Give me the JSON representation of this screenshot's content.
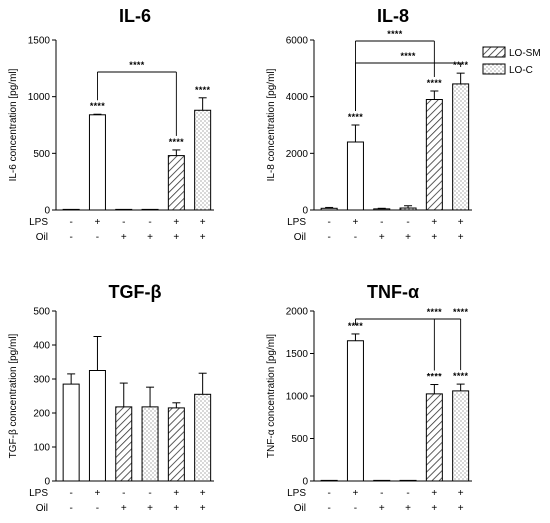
{
  "legend": {
    "entries": [
      {
        "label": "LO-SM",
        "pattern": "hatch"
      },
      {
        "label": "LO-C",
        "pattern": "dots"
      }
    ]
  },
  "conditions": {
    "row_labels": [
      "LPS",
      "Oil"
    ],
    "lps": [
      "-",
      "+",
      "-",
      "-",
      "+",
      "+"
    ],
    "oil": [
      "-",
      "-",
      "+",
      "+",
      "+",
      "+"
    ]
  },
  "chart_data": [
    {
      "type": "bar",
      "title": "IL-6",
      "ylabel": "IL-6 concentration [pg/ml]",
      "ylim": [
        0,
        1500
      ],
      "yticks": [
        0,
        500,
        1000,
        1500
      ],
      "values": [
        0,
        840,
        0,
        0,
        480,
        880
      ],
      "errors": [
        0,
        5,
        0,
        0,
        50,
        110
      ],
      "patterns": [
        "open",
        "open",
        "open",
        "dots",
        "hatch",
        "dots"
      ],
      "sig_labels": [
        "",
        "****",
        "",
        "",
        "****",
        "****"
      ],
      "brackets": [
        {
          "from": 1,
          "to": 4,
          "label": "****"
        }
      ]
    },
    {
      "type": "bar",
      "title": "IL-8",
      "ylabel": "IL-8 concentration [pg/ml]",
      "ylim": [
        0,
        6000
      ],
      "yticks": [
        0,
        2000,
        4000,
        6000
      ],
      "values": [
        60,
        2400,
        40,
        70,
        3900,
        4450
      ],
      "errors": [
        30,
        600,
        20,
        80,
        300,
        380
      ],
      "patterns": [
        "open",
        "open",
        "open",
        "dots",
        "hatch",
        "dots"
      ],
      "sig_labels": [
        "",
        "****",
        "",
        "",
        "****",
        "****"
      ],
      "brackets": [
        {
          "from": 1,
          "to": 4,
          "label": "****"
        },
        {
          "from": 1,
          "to": 5,
          "label": "****"
        }
      ]
    },
    {
      "type": "bar",
      "title": "TGF-β",
      "ylabel": "TGF-β concentration [pg/ml]",
      "ylim": [
        0,
        500
      ],
      "yticks": [
        0,
        100,
        200,
        300,
        400,
        500
      ],
      "values": [
        285,
        325,
        218,
        218,
        215,
        255
      ],
      "errors": [
        30,
        100,
        70,
        58,
        15,
        62
      ],
      "patterns": [
        "open",
        "open",
        "hatch",
        "dots",
        "hatch",
        "dots"
      ],
      "sig_labels": [
        "",
        "",
        "",
        "",
        "",
        ""
      ],
      "brackets": []
    },
    {
      "type": "bar",
      "title": "TNF-α",
      "ylabel": "TNF-α concentration [pg/ml]",
      "ylim": [
        0,
        2000
      ],
      "yticks": [
        0,
        500,
        1000,
        1500,
        2000
      ],
      "values": [
        0,
        1650,
        0,
        0,
        1025,
        1060
      ],
      "errors": [
        0,
        80,
        0,
        0,
        110,
        80
      ],
      "patterns": [
        "open",
        "open",
        "open",
        "dots",
        "hatch",
        "dots"
      ],
      "sig_labels": [
        "",
        "****",
        "",
        "",
        "****",
        "****"
      ],
      "brackets": [
        {
          "from": 1,
          "to": [
            4,
            5
          ],
          "labels": [
            "****",
            "****"
          ]
        }
      ]
    }
  ]
}
